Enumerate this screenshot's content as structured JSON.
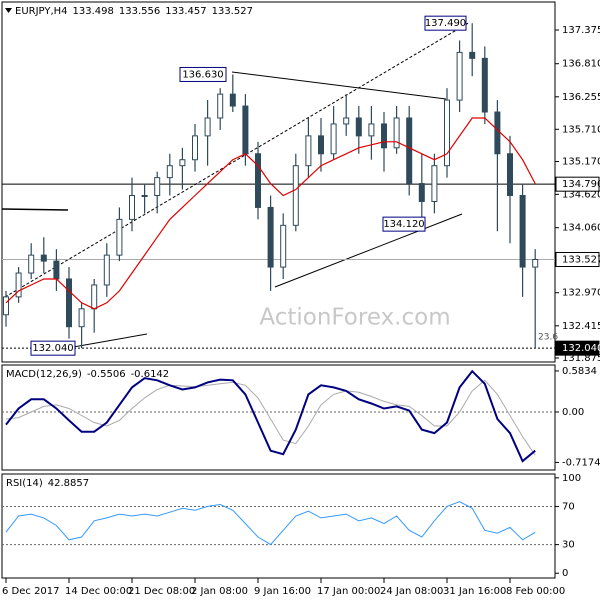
{
  "chart_data": [
    {
      "type": "candlestick",
      "title": "EURJPY,H4",
      "header_values": [
        133.498,
        133.556,
        133.457,
        133.527
      ],
      "categories": [
        "6 Dec 2017",
        null,
        null,
        null,
        null,
        "14 Dec 00:00",
        null,
        null,
        null,
        null,
        "21 Dec 08:00",
        null,
        null,
        null,
        null,
        "2 Jan 08:00",
        null,
        null,
        null,
        null,
        "9 Jan 16:00",
        null,
        null,
        null,
        null,
        "17 Jan 00:00",
        null,
        null,
        null,
        null,
        "24 Jan 08:00",
        null,
        null,
        null,
        null,
        "31 Jan 16:00",
        null,
        null,
        null,
        null,
        "8 Feb 00:00",
        null,
        null
      ],
      "open": [
        132.6,
        132.9,
        133.3,
        133.6,
        133.5,
        133.2,
        132.4,
        132.7,
        133.1,
        133.6,
        134.2,
        134.6,
        134.6,
        134.9,
        135.1,
        135.2,
        135.6,
        135.9,
        136.3,
        136.1,
        135.3,
        134.4,
        133.4,
        134.1,
        135.1,
        135.6,
        135.3,
        135.8,
        135.9,
        135.6,
        135.8,
        135.4,
        135.9,
        134.8,
        134.5,
        135.1,
        136.2,
        137.0,
        136.9,
        136.0,
        135.3,
        134.6,
        133.4
      ],
      "high": [
        133.0,
        133.4,
        133.8,
        133.9,
        133.7,
        133.4,
        132.8,
        133.2,
        133.8,
        134.4,
        134.9,
        134.8,
        135.0,
        135.3,
        135.4,
        135.8,
        136.2,
        136.4,
        136.63,
        136.3,
        135.5,
        134.6,
        134.3,
        135.3,
        135.9,
        135.9,
        136.1,
        136.3,
        136.1,
        136.1,
        136.0,
        136.1,
        136.1,
        135.3,
        135.3,
        136.4,
        137.2,
        137.49,
        137.1,
        136.2,
        135.6,
        134.8,
        133.7
      ],
      "low": [
        132.4,
        132.8,
        133.2,
        133.3,
        133.0,
        132.2,
        132.04,
        132.3,
        132.9,
        133.5,
        134.0,
        134.3,
        134.3,
        134.6,
        134.7,
        135.0,
        135.1,
        135.7,
        136.0,
        135.1,
        134.2,
        133.0,
        133.2,
        134.0,
        134.9,
        135.0,
        135.2,
        135.6,
        135.3,
        135.2,
        135.0,
        135.3,
        134.6,
        134.12,
        134.3,
        134.9,
        136.0,
        136.6,
        135.8,
        134.0,
        133.8,
        132.9,
        132.04
      ],
      "close": [
        132.9,
        133.3,
        133.6,
        133.5,
        133.2,
        132.4,
        132.7,
        133.1,
        133.6,
        134.2,
        134.6,
        134.6,
        134.9,
        135.1,
        135.2,
        135.6,
        135.9,
        136.3,
        136.1,
        135.3,
        134.4,
        133.4,
        134.1,
        135.1,
        135.6,
        135.3,
        135.8,
        135.9,
        135.6,
        135.8,
        135.4,
        135.9,
        134.8,
        134.5,
        135.1,
        136.2,
        137.0,
        136.9,
        136.0,
        135.3,
        134.6,
        133.4,
        133.527
      ],
      "color": "#2f4a5a",
      "lines": [
        {
          "color": "#e00000",
          "width": 1.2,
          "values": [
            132.8,
            133.0,
            133.1,
            133.2,
            133.2,
            133.0,
            132.8,
            132.7,
            132.8,
            133.0,
            133.3,
            133.6,
            133.9,
            134.2,
            134.4,
            134.6,
            134.8,
            135.0,
            135.2,
            135.3,
            135.1,
            134.8,
            134.6,
            134.7,
            134.9,
            135.1,
            135.2,
            135.3,
            135.4,
            135.45,
            135.5,
            135.5,
            135.4,
            135.3,
            135.2,
            135.3,
            135.6,
            135.9,
            135.9,
            135.7,
            135.5,
            135.2,
            134.8
          ]
        }
      ],
      "ylim": [
        131.808,
        137.845
      ],
      "yticks": [
        137.375,
        {
          "value": 136.81,
          "label": "136.810"
        },
        136.255,
        {
          "value": 135.71,
          "label": "135.710"
        },
        {
          "value": 135.17,
          "label": "135.170"
        },
        {
          "value": 134.62,
          "label": "134.620"
        },
        {
          "value": 134.06,
          "label": "134.060"
        },
        {
          "value": 132.97,
          "label": "132.970"
        },
        132.415,
        131.875
      ],
      "price_tags": [
        {
          "value": 134.79,
          "label": "134.790"
        },
        133.527,
        {
          "value": 132.04,
          "label": "132.040"
        }
      ],
      "annotations": [
        {
          "value": 137.49,
          "label": "137.490"
        },
        {
          "value": 136.63,
          "label": "136.630"
        },
        {
          "value": 134.12,
          "label": "134.120"
        },
        {
          "value": 132.04,
          "label": "132.040"
        }
      ],
      "fib_label": "23.6",
      "watermark": "ActionForex.com"
    },
    {
      "type": "line",
      "title": "MACD(12,26,9)",
      "header_values": [
        -0.5506,
        -0.6142
      ],
      "lines": [
        {
          "color": "#aaaaaa",
          "width": 1,
          "values": [
            -0.1,
            -0.08,
            0.0,
            0.08,
            0.1,
            0.05,
            -0.05,
            -0.15,
            -0.2,
            -0.12,
            0.05,
            0.2,
            0.32,
            0.38,
            0.37,
            0.36,
            0.38,
            0.4,
            0.42,
            0.38,
            0.2,
            -0.1,
            -0.4,
            -0.45,
            -0.2,
            0.1,
            0.25,
            0.3,
            0.28,
            0.22,
            0.15,
            0.1,
            0.08,
            -0.05,
            -0.2,
            -0.2,
            0.0,
            0.3,
            0.45,
            0.25,
            -0.05,
            -0.35,
            -0.6142
          ]
        },
        {
          "color": "#000080",
          "width": 2,
          "values": [
            -0.18,
            0.05,
            0.18,
            0.18,
            0.05,
            -0.12,
            -0.28,
            -0.28,
            -0.15,
            0.1,
            0.35,
            0.48,
            0.45,
            0.38,
            0.32,
            0.35,
            0.42,
            0.46,
            0.45,
            0.25,
            -0.15,
            -0.55,
            -0.6,
            -0.25,
            0.25,
            0.38,
            0.35,
            0.3,
            0.18,
            0.12,
            0.05,
            0.08,
            0.02,
            -0.25,
            -0.3,
            -0.15,
            0.35,
            0.58,
            0.4,
            -0.1,
            -0.3,
            -0.7,
            -0.5506
          ]
        }
      ],
      "ylim": [
        -0.825,
        0.668
      ],
      "yticks": [
        0.5834,
        {
          "value": 0,
          "label": "0.00"
        },
        -0.7174
      ],
      "levels": [
        0
      ]
    },
    {
      "type": "line",
      "title": "RSI(14)",
      "header_values": [
        42.8857
      ],
      "lines": [
        {
          "color": "#3399ff",
          "width": 1,
          "values": [
            43,
            60,
            62,
            58,
            50,
            35,
            38,
            55,
            58,
            62,
            60,
            62,
            60,
            64,
            68,
            66,
            70,
            72,
            66,
            52,
            38,
            30,
            45,
            60,
            65,
            58,
            60,
            62,
            55,
            58,
            52,
            60,
            45,
            38,
            55,
            70,
            75,
            68,
            45,
            42,
            48,
            35,
            42.8857
          ]
        }
      ],
      "ylim": [
        -5,
        104
      ],
      "yticks": [
        100,
        70,
        30,
        0
      ],
      "levels": [
        70,
        30
      ]
    }
  ]
}
